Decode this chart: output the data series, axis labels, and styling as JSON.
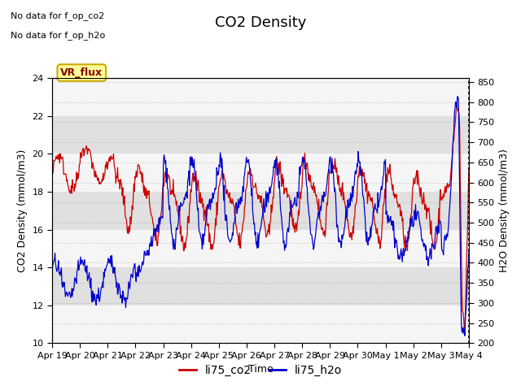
{
  "title": "CO2 Density",
  "xlabel": "Time",
  "ylabel_left": "CO2 Density (mmol/m3)",
  "ylabel_right": "H2O Density (mmol/m3)",
  "ylim_left": [
    10,
    24
  ],
  "ylim_right": [
    200,
    860
  ],
  "yticks_left": [
    10,
    12,
    14,
    16,
    18,
    20,
    22,
    24
  ],
  "yticks_right": [
    200,
    250,
    300,
    350,
    400,
    450,
    500,
    550,
    600,
    650,
    700,
    750,
    800,
    850
  ],
  "xtick_labels": [
    "Apr 19",
    "Apr 20",
    "Apr 21",
    "Apr 22",
    "Apr 23",
    "Apr 24",
    "Apr 25",
    "Apr 26",
    "Apr 27",
    "Apr 28",
    "Apr 29",
    "Apr 30",
    "May 1",
    "May 2",
    "May 3",
    "May 4"
  ],
  "no_data_text1": "No data for f_op_co2",
  "no_data_text2": "No data for f_op_h2o",
  "vr_flux_label": "VR_flux",
  "legend_co2": "li75_co2",
  "legend_h2o": "li75_h2o",
  "color_co2": "#cc0000",
  "color_h2o": "#0000cc",
  "bg_color": "#e8e8e8",
  "band_light": "#f5f5f5",
  "band_dark": "#e0e0e0",
  "vr_flux_bg": "#ffff99",
  "vr_flux_border": "#ccaa00",
  "title_fontsize": 13,
  "label_fontsize": 9,
  "tick_fontsize": 8,
  "nodata_fontsize": 8
}
